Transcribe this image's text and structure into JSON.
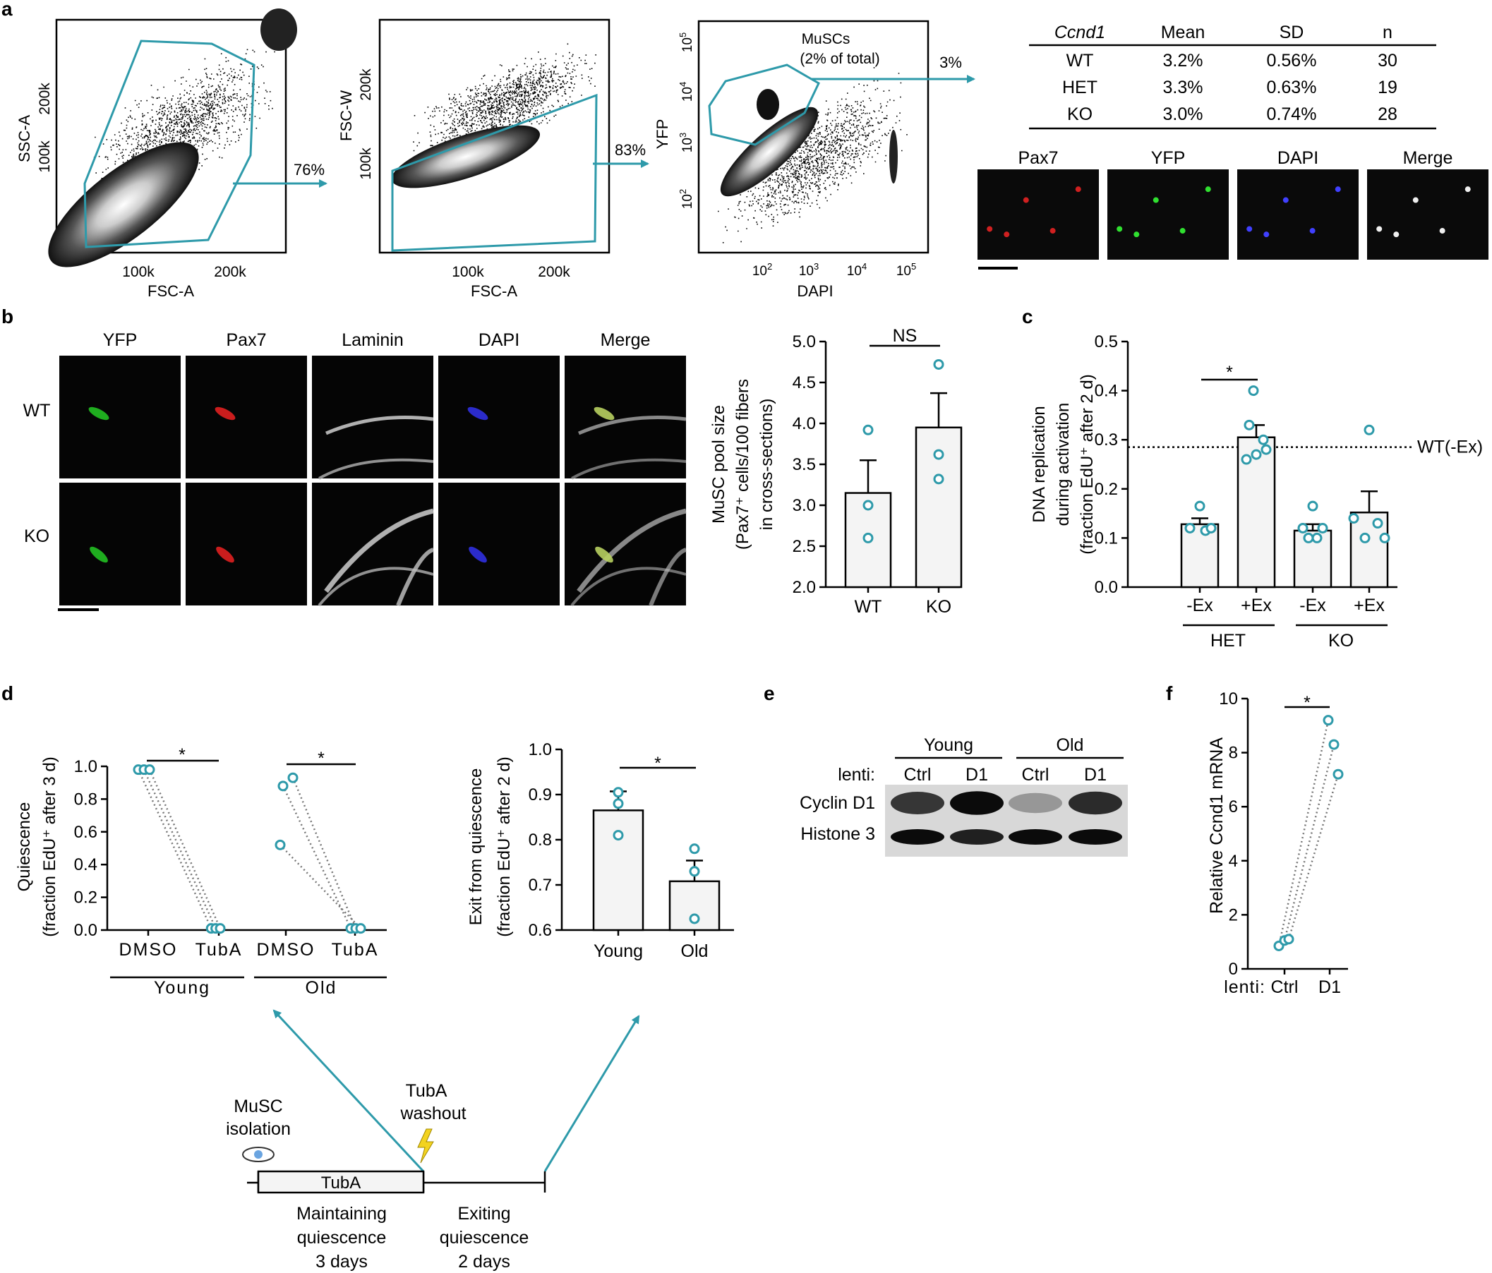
{
  "panel_labels": {
    "a": "a",
    "b": "b",
    "c": "c",
    "d": "d",
    "e": "e",
    "f": "f"
  },
  "panel_a": {
    "plot1": {
      "ylabel": "SSC-A",
      "xlabel": "FSC-A",
      "yticks": [
        "200k",
        "100k"
      ],
      "xticks": [
        "100k",
        "200k"
      ],
      "gate_pct": "76%"
    },
    "plot2": {
      "ylabel": "FSC-W",
      "xlabel": "FSC-A",
      "yticks": [
        "200k",
        "100k"
      ],
      "xticks": [
        "100k",
        "200k"
      ],
      "gate_pct": "83%"
    },
    "plot3": {
      "ylabel": "YFP",
      "xlabel": "DAPI",
      "gate_label_1": "MuSCs",
      "gate_label_2": "(2% of total)",
      "gate_pct": "3%",
      "log_ticks": [
        "10",
        "10",
        "10",
        "10"
      ],
      "log_exps": [
        "2",
        "3",
        "4",
        "5"
      ]
    },
    "table": {
      "headers": [
        "Ccnd1",
        "Mean",
        "SD",
        "n"
      ],
      "rows": [
        [
          "WT",
          "3.2%",
          "0.56%",
          "30"
        ],
        [
          "HET",
          "3.3%",
          "0.63%",
          "19"
        ],
        [
          "KO",
          "3.0%",
          "0.74%",
          "28"
        ]
      ]
    },
    "micro_labels": [
      "Pax7",
      "YFP",
      "DAPI",
      "Merge"
    ],
    "micro_dot_colors": [
      "#d02020",
      "#30e030",
      "#4040ff",
      "#f0f0f0"
    ]
  },
  "panel_b": {
    "col_labels": [
      "YFP",
      "Pax7",
      "Laminin",
      "DAPI",
      "Merge"
    ],
    "row_labels": [
      "WT",
      "KO"
    ],
    "channel_colors": [
      "#22c022",
      "#e02020",
      "#dddddd",
      "#3030e0",
      "#ffffff"
    ]
  },
  "chart_data": [
    {
      "type": "bar",
      "id": "b",
      "ylabel_lines": [
        "MuSC pool size",
        "(Pax7⁺ cells/100 fibers",
        "in cross-sections)"
      ],
      "categories": [
        "WT",
        "KO"
      ],
      "values": [
        3.15,
        3.95
      ],
      "sem": [
        0.4,
        0.42
      ],
      "points": [
        [
          3.92,
          3.0,
          2.6
        ],
        [
          4.72,
          3.62,
          3.32
        ]
      ],
      "ylim": [
        2.0,
        5.0
      ],
      "yticks": [
        "2.0",
        "2.5",
        "3.0",
        "3.5",
        "4.0",
        "4.5",
        "5.0"
      ],
      "significance": "NS"
    },
    {
      "type": "bar",
      "id": "c",
      "ylabel_lines": [
        "DNA replication",
        "during activation",
        "(fraction EdU⁺ after 2 d)"
      ],
      "categories": [
        "-Ex",
        "+Ex",
        "-Ex",
        "+Ex"
      ],
      "groups": [
        "HET",
        "KO"
      ],
      "values": [
        0.128,
        0.305,
        0.115,
        0.152
      ],
      "sem": [
        0.012,
        0.025,
        0.013,
        0.043
      ],
      "points": [
        [
          0.165,
          0.12,
          0.115,
          0.12
        ],
        [
          0.4,
          0.33,
          0.3,
          0.26,
          0.27,
          0.28
        ],
        [
          0.165,
          0.12,
          0.1,
          0.1,
          0.12
        ],
        [
          0.32,
          0.14,
          0.1,
          0.13,
          0.1
        ]
      ],
      "ylim": [
        0.0,
        0.5
      ],
      "yticks": [
        "0.0",
        "0.1",
        "0.2",
        "0.3",
        "0.4",
        "0.5"
      ],
      "reference_line": {
        "value": 0.285,
        "label": "WT(-Ex)"
      },
      "significance": "*"
    },
    {
      "type": "scatter",
      "id": "d1",
      "ylabel_lines": [
        "Quiescence",
        "(fraction EdU⁺ after 3 d)"
      ],
      "categories": [
        "DMSO",
        "TubA",
        "DMSO",
        "TubA"
      ],
      "groups": [
        "Young",
        "Old"
      ],
      "pairs_young": [
        [
          0.98,
          0.01
        ],
        [
          0.98,
          0.01
        ],
        [
          0.98,
          0.01
        ]
      ],
      "pairs_old": [
        [
          0.88,
          0.01
        ],
        [
          0.93,
          0.01
        ],
        [
          0.52,
          0.01
        ]
      ],
      "ylim": [
        0.0,
        1.0
      ],
      "yticks": [
        "0.0",
        "0.2",
        "0.4",
        "0.6",
        "0.8",
        "1.0"
      ],
      "significance": [
        "*",
        "*"
      ]
    },
    {
      "type": "bar",
      "id": "d2",
      "ylabel_lines": [
        "Exit from quiescence",
        "(fraction EdU⁺ after 2 d)"
      ],
      "categories": [
        "Young",
        "Old"
      ],
      "values": [
        0.865,
        0.708
      ],
      "sem": [
        0.042,
        0.046
      ],
      "points": [
        [
          0.905,
          0.88,
          0.81
        ],
        [
          0.78,
          0.73,
          0.625
        ]
      ],
      "ylim": [
        0.6,
        1.0
      ],
      "yticks": [
        "0.6",
        "0.7",
        "0.8",
        "0.9",
        "1.0"
      ],
      "significance": "*"
    },
    {
      "type": "scatter",
      "id": "f",
      "ylabel": "Relative Ccnd1 mRNA",
      "categories": [
        "Ctrl",
        "D1"
      ],
      "xprefix": "lenti:",
      "pairs": [
        [
          0.85,
          9.2
        ],
        [
          1.05,
          8.3
        ],
        [
          1.1,
          7.2
        ]
      ],
      "ylim": [
        0,
        10
      ],
      "yticks": [
        "0",
        "2",
        "4",
        "6",
        "8",
        "10"
      ],
      "significance": "*"
    }
  ],
  "panel_e": {
    "groups": [
      "Young",
      "Old"
    ],
    "lenti_label": "lenti:",
    "lanes": [
      "Ctrl",
      "D1",
      "Ctrl",
      "D1"
    ],
    "bands": [
      "Cyclin D1",
      "Histone 3"
    ],
    "cyclin_intensity": [
      0.75,
      0.95,
      0.3,
      0.8
    ],
    "histone_intensity": [
      0.95,
      0.85,
      0.95,
      0.95
    ]
  },
  "timeline": {
    "isolation_1": "MuSC",
    "isolation_2": "isolation",
    "washout_1": "TubA",
    "washout_2": "washout",
    "bar_label": "TubA",
    "phase1": [
      "Maintaining",
      "quiescence",
      "3 days"
    ],
    "phase2": [
      "Exiting",
      "quiescence",
      "2 days"
    ]
  },
  "colors": {
    "accent": "#2e9aaa",
    "bar_fill": "#f4f4f4"
  }
}
